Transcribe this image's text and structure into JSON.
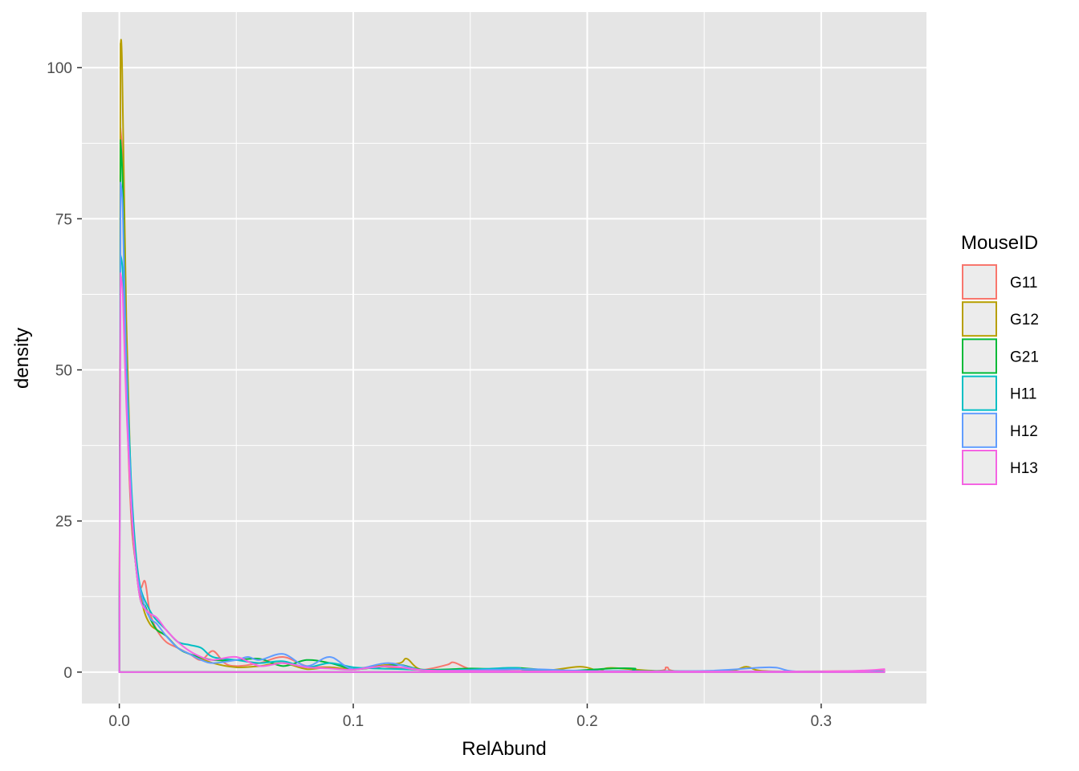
{
  "chart_data": {
    "type": "line",
    "subtype": "density",
    "xlabel": "RelAbund",
    "ylabel": "density",
    "xlim": [
      -0.016,
      0.345
    ],
    "ylim": [
      -5.2,
      109.2
    ],
    "x_ticks": [
      0.0,
      0.1,
      0.2,
      0.3
    ],
    "x_tick_labels": [
      "0.0",
      "0.1",
      "0.2",
      "0.3"
    ],
    "y_ticks": [
      0,
      25,
      50,
      75,
      100
    ],
    "y_tick_labels": [
      "0",
      "25",
      "50",
      "75",
      "100"
    ],
    "grid": true,
    "panel_background": "#e5e5e5",
    "legend": {
      "title": "MouseID",
      "position": "right",
      "entries": [
        "G11",
        "G12",
        "G21",
        "H11",
        "H12",
        "H13"
      ]
    },
    "series": [
      {
        "name": "G11",
        "color": "#F8766D",
        "x": [
          0,
          0.0005,
          0.0015,
          0.003,
          0.005,
          0.007,
          0.009,
          0.011,
          0.013,
          0.016,
          0.02,
          0.025,
          0.03,
          0.035,
          0.04,
          0.045,
          0.05,
          0.06,
          0.07,
          0.08,
          0.09,
          0.1,
          0.11,
          0.12,
          0.13,
          0.14,
          0.143,
          0.15,
          0.16,
          0.2,
          0.23,
          0.234,
          0.24,
          0.28,
          0.327
        ],
        "y": [
          0,
          90,
          82,
          48,
          26,
          18,
          14,
          15,
          10,
          7,
          5,
          4,
          3,
          2,
          3.5,
          1.5,
          1.0,
          1.5,
          2.5,
          1.0,
          0.8,
          0.5,
          1.0,
          0.6,
          0.4,
          1.2,
          1.6,
          0.5,
          0.2,
          0.2,
          0.2,
          0.8,
          0.1,
          0.1,
          0.2
        ]
      },
      {
        "name": "G12",
        "color": "#B79F00",
        "x": [
          0,
          0.0005,
          0.0012,
          0.003,
          0.005,
          0.007,
          0.01,
          0.013,
          0.016,
          0.02,
          0.025,
          0.03,
          0.04,
          0.05,
          0.06,
          0.07,
          0.08,
          0.09,
          0.1,
          0.11,
          0.12,
          0.123,
          0.13,
          0.15,
          0.18,
          0.197,
          0.205,
          0.21,
          0.23,
          0.26,
          0.268,
          0.275,
          0.3,
          0.327
        ],
        "y": [
          0,
          104,
          100,
          58,
          30,
          18,
          11,
          8,
          7,
          6,
          4,
          3,
          1.5,
          0.8,
          1.0,
          1.5,
          0.5,
          0.8,
          0.4,
          1.0,
          1.5,
          2.2,
          0.3,
          0.2,
          0.2,
          0.9,
          0.2,
          0.7,
          0.2,
          0.2,
          0.9,
          0.2,
          0.1,
          0.1
        ]
      },
      {
        "name": "G21",
        "color": "#00BA38",
        "x": [
          0,
          0.0005,
          0.0015,
          0.003,
          0.005,
          0.007,
          0.009,
          0.011,
          0.013,
          0.016,
          0.02,
          0.025,
          0.03,
          0.04,
          0.05,
          0.06,
          0.07,
          0.08,
          0.09,
          0.1,
          0.11,
          0.12,
          0.13,
          0.15,
          0.16,
          0.17,
          0.19,
          0.21,
          0.22,
          0.23,
          0.327
        ],
        "y": [
          0,
          88,
          80,
          50,
          28,
          18,
          12,
          11,
          9,
          7,
          6,
          4,
          3,
          2,
          2,
          2.2,
          1.0,
          2.0,
          1.5,
          0.5,
          0.8,
          1.2,
          0.4,
          0.6,
          0.5,
          0.7,
          0.2,
          0.6,
          0.6,
          0.1,
          0.1
        ]
      },
      {
        "name": "H11",
        "color": "#00BFC4",
        "x": [
          0,
          0.0005,
          0.0015,
          0.003,
          0.005,
          0.007,
          0.009,
          0.012,
          0.015,
          0.02,
          0.025,
          0.03,
          0.035,
          0.04,
          0.05,
          0.06,
          0.07,
          0.08,
          0.09,
          0.1,
          0.11,
          0.12,
          0.14,
          0.16,
          0.17,
          0.19,
          0.327
        ],
        "y": [
          0,
          69,
          66,
          52,
          32,
          20,
          14,
          11,
          9,
          7,
          5,
          4.5,
          4,
          2.5,
          2,
          1.5,
          1.8,
          0.8,
          1.5,
          0.8,
          0.6,
          0.5,
          0.3,
          0.6,
          0.7,
          0.2,
          0.1
        ]
      },
      {
        "name": "H12",
        "color": "#619CFF",
        "x": [
          0,
          0.0005,
          0.0015,
          0.003,
          0.005,
          0.007,
          0.01,
          0.013,
          0.016,
          0.02,
          0.025,
          0.03,
          0.035,
          0.04,
          0.05,
          0.055,
          0.06,
          0.07,
          0.08,
          0.09,
          0.1,
          0.115,
          0.13,
          0.15,
          0.175,
          0.2,
          0.25,
          0.278,
          0.29,
          0.327
        ],
        "y": [
          0,
          81,
          76,
          50,
          30,
          18,
          12,
          9,
          8,
          6,
          4,
          3,
          2,
          1.5,
          2,
          2.5,
          2,
          3,
          1.0,
          2.5,
          0.5,
          1.5,
          0.3,
          0.3,
          0.5,
          0.2,
          0.2,
          0.8,
          0.1,
          0.1
        ]
      },
      {
        "name": "H13",
        "color": "#F564E3",
        "x": [
          0,
          0.0005,
          0.0015,
          0.003,
          0.005,
          0.007,
          0.009,
          0.012,
          0.016,
          0.02,
          0.025,
          0.03,
          0.035,
          0.04,
          0.05,
          0.06,
          0.07,
          0.08,
          0.09,
          0.1,
          0.115,
          0.13,
          0.15,
          0.2,
          0.25,
          0.3,
          0.32,
          0.327
        ],
        "y": [
          0,
          66,
          62,
          44,
          28,
          18,
          12,
          10,
          9,
          7,
          5,
          3.5,
          2.5,
          2,
          2.5,
          1.0,
          1.5,
          0.8,
          0.6,
          0.4,
          1.0,
          0.3,
          0.2,
          0.1,
          0.1,
          0.1,
          0.3,
          0.5
        ]
      }
    ]
  }
}
